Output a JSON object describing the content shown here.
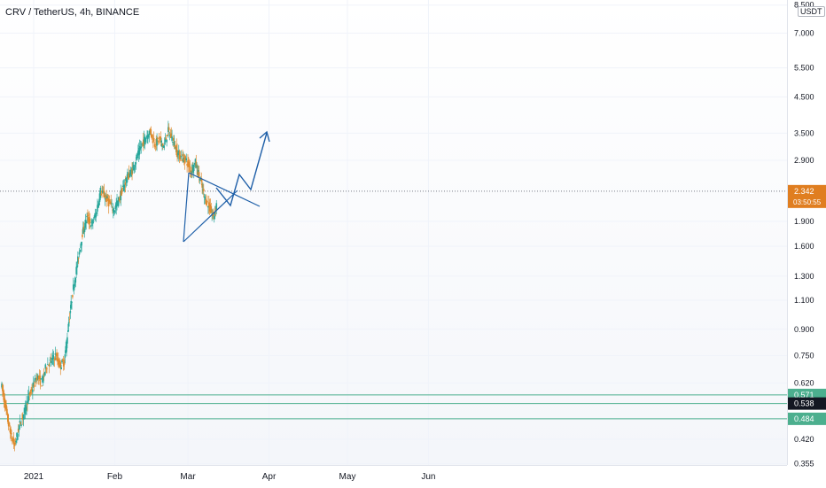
{
  "header": {
    "title": "CRV / TetherUS, 4h, BINANCE",
    "currency": "USDT"
  },
  "chart_data": {
    "type": "candlestick",
    "symbol": "CRV / TetherUS",
    "interval": "4h",
    "exchange": "BINANCE",
    "y_scale": "log",
    "ylim": [
      0.35,
      8.5
    ],
    "price_ticks": [
      "8.500",
      "7.000",
      "5.500",
      "4.500",
      "3.500",
      "2.900",
      "1.900",
      "1.600",
      "1.300",
      "1.100",
      "0.900",
      "0.750",
      "0.620",
      "0.420",
      "0.355"
    ],
    "time_ticks": [
      "2021",
      "Feb",
      "Mar",
      "Apr",
      "May",
      "Jun"
    ],
    "last_price": {
      "value": 2.342,
      "label": "2.342",
      "countdown": "03:50:55",
      "color": "#e07e20"
    },
    "levels": [
      {
        "value": 0.571,
        "label": "0.571",
        "color": "#4caf8e"
      },
      {
        "value": 0.538,
        "label": "0.538",
        "color": "#131722"
      },
      {
        "value": 0.484,
        "label": "0.484",
        "color": "#4caf8e"
      }
    ],
    "up_color": "#26a69a",
    "down_color": "#e08a2c",
    "annotation_color": "#1e5fa8",
    "annotation": "symmetrical triangle with projected breakout arrow",
    "price_path_daily": [
      0.62,
      0.52,
      0.44,
      0.4,
      0.46,
      0.5,
      0.56,
      0.6,
      0.65,
      0.62,
      0.7,
      0.72,
      0.75,
      0.7,
      0.72,
      0.95,
      1.2,
      1.45,
      1.75,
      1.95,
      1.85,
      2.0,
      2.35,
      2.25,
      2.15,
      2.05,
      2.2,
      2.4,
      2.6,
      2.7,
      2.95,
      3.2,
      3.4,
      3.55,
      3.25,
      3.35,
      3.2,
      3.55,
      3.35,
      3.05,
      2.95,
      2.9,
      2.7,
      2.85,
      2.55,
      2.25,
      2.1,
      1.95,
      2.25,
      2.45,
      2.55,
      2.4,
      2.05,
      1.95,
      2.15,
      2.3,
      2.4,
      2.25,
      2.2,
      2.3,
      2.34
    ]
  }
}
